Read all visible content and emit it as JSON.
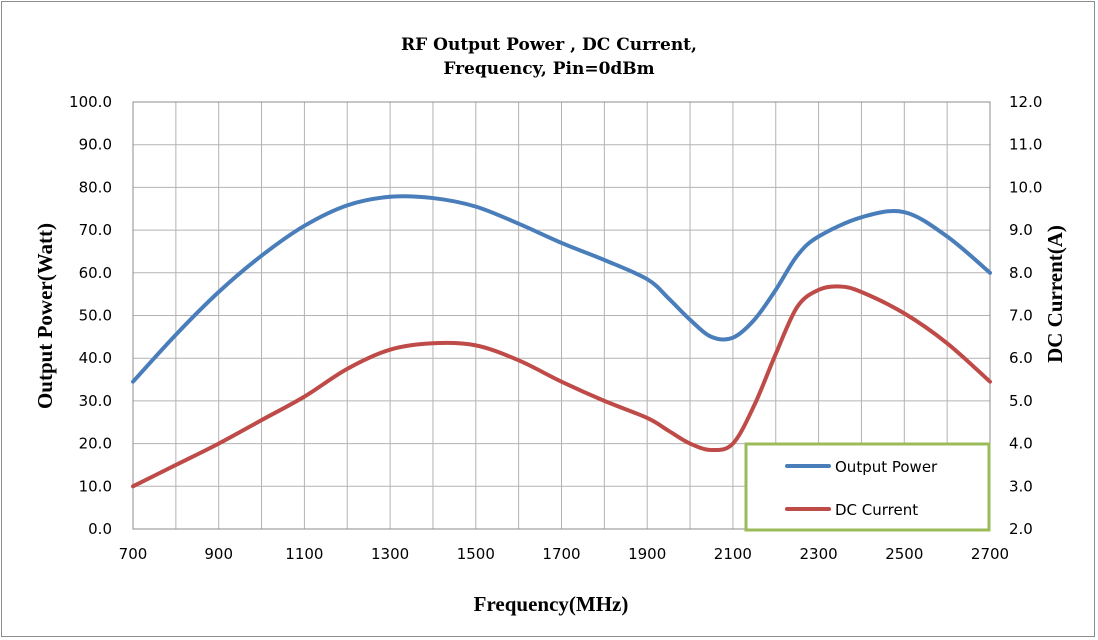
{
  "chart_data": {
    "type": "line",
    "title_lines": [
      "RF Output Power , DC Current,",
      "Frequency, Pin=0dBm"
    ],
    "xlabel": "Frequency(MHz)",
    "ylabel_left": "Output Power(Watt)",
    "ylabel_right": "DC Current(A)",
    "xlim": [
      700,
      2700
    ],
    "ylim_left": [
      0,
      100
    ],
    "ylim_right": [
      2,
      12
    ],
    "x_ticks": [
      "700",
      "900",
      "1100",
      "1300",
      "1500",
      "1700",
      "1900",
      "2100",
      "2300",
      "2500",
      "2700"
    ],
    "y_left_ticks": [
      "0.0",
      "10.0",
      "20.0",
      "30.0",
      "40.0",
      "50.0",
      "60.0",
      "70.0",
      "80.0",
      "90.0",
      "100.0"
    ],
    "y_right_ticks": [
      "2.0",
      "3.0",
      "4.0",
      "5.0",
      "6.0",
      "7.0",
      "8.0",
      "9.0",
      "10.0",
      "11.0",
      "12.0"
    ],
    "grid": true,
    "legend_position": "bottom-right",
    "series": [
      {
        "name": "Output Power",
        "axis": "left",
        "color": "#4a7ebb",
        "x": [
          700,
          800,
          900,
          1000,
          1100,
          1200,
          1300,
          1400,
          1500,
          1600,
          1700,
          1800,
          1900,
          1950,
          2000,
          2050,
          2100,
          2150,
          2200,
          2250,
          2300,
          2400,
          2500,
          2600,
          2700
        ],
        "y": [
          34.5,
          45.5,
          55.5,
          64,
          71,
          75.8,
          77.8,
          77.5,
          75.5,
          71.5,
          67,
          63,
          58.5,
          54,
          49,
          45,
          44.8,
          49,
          56,
          64,
          68.5,
          73,
          74.2,
          68.5,
          60
        ]
      },
      {
        "name": "DC Current",
        "axis": "right",
        "color": "#be4b48",
        "x": [
          700,
          800,
          900,
          1000,
          1100,
          1200,
          1300,
          1400,
          1500,
          1600,
          1700,
          1800,
          1900,
          1950,
          2000,
          2050,
          2100,
          2150,
          2200,
          2250,
          2300,
          2350,
          2400,
          2500,
          2600,
          2700
        ],
        "y": [
          3.0,
          3.5,
          4.0,
          4.55,
          5.1,
          5.75,
          6.2,
          6.35,
          6.3,
          5.95,
          5.45,
          5.0,
          4.6,
          4.3,
          4.0,
          3.85,
          4.0,
          4.9,
          6.1,
          7.2,
          7.6,
          7.68,
          7.55,
          7.05,
          6.35,
          5.45
        ]
      }
    ]
  }
}
